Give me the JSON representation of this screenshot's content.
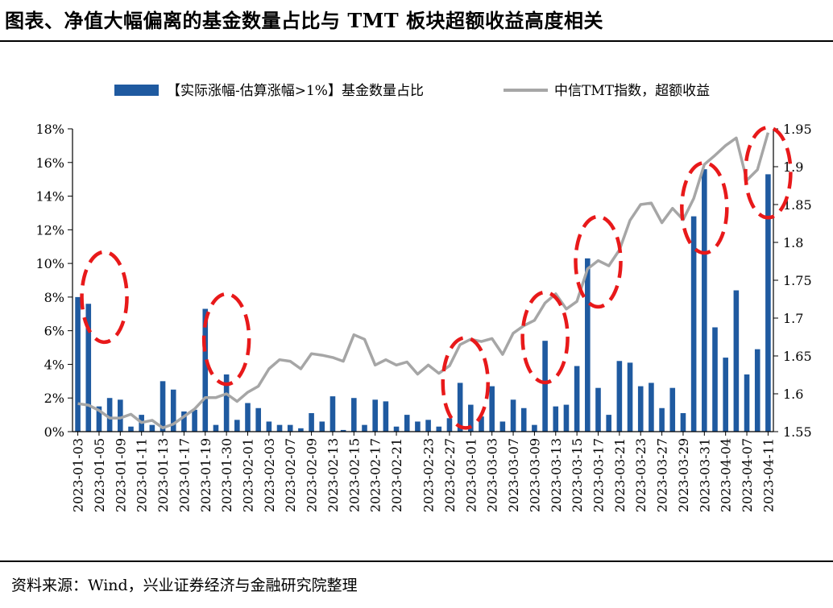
{
  "header": {
    "title": "图表、净值大幅偏离的基金数量占比与 TMT 板块超额收益高度相关"
  },
  "footer": {
    "source": "资料来源：Wind，兴业证券经济与金融研究院整理"
  },
  "colors": {
    "bar": "#1f5aa0",
    "line": "#a6a6a6",
    "highlight": "#e8191a"
  },
  "chart_data": {
    "type": "bar+line",
    "x_tick_labels": [
      "2023-01-03",
      "2023-01-05",
      "2023-01-09",
      "2023-01-11",
      "2023-01-13",
      "2023-01-17",
      "2023-01-19",
      "2023-01-30",
      "2023-02-01",
      "2023-02-03",
      "2023-02-07",
      "2023-02-09",
      "2023-02-13",
      "2023-02-15",
      "2023-02-17",
      "2023-02-21",
      "2023-02-23",
      "2023-02-27",
      "2023-03-01",
      "2023-03-03",
      "2023-03-07",
      "2023-03-09",
      "2023-03-13",
      "2023-03-15",
      "2023-03-17",
      "2023-03-21",
      "2023-03-23",
      "2023-03-27",
      "2023-03-29",
      "2023-03-31",
      "2023-04-04",
      "2023-04-07",
      "2023-04-11"
    ],
    "y_left": {
      "ticks": [
        "0%",
        "2%",
        "4%",
        "6%",
        "8%",
        "10%",
        "12%",
        "14%",
        "16%",
        "18%"
      ],
      "range": [
        0,
        18
      ]
    },
    "y_right": {
      "ticks": [
        "1.55",
        "1.6",
        "1.65",
        "1.7",
        "1.75",
        "1.8",
        "1.85",
        "1.9",
        "1.95"
      ],
      "range": [
        1.55,
        1.95
      ]
    },
    "series": [
      {
        "name": "【实际涨幅-估算涨幅>1%】基金数量占比",
        "type": "bar",
        "axis": "left",
        "values": [
          8.0,
          7.6,
          1.5,
          2.0,
          1.9,
          0.3,
          1.0,
          0.4,
          3.0,
          2.5,
          1.2,
          1.3,
          7.3,
          0.4,
          3.4,
          0.7,
          1.7,
          1.4,
          0.6,
          0.4,
          0.4,
          0.2,
          1.1,
          0.6,
          2.1,
          0.1,
          2.0,
          0.4,
          1.9,
          1.8,
          0.3,
          1.0,
          0.6,
          0.7,
          0.3,
          0.8,
          2.9,
          1.6,
          0.9,
          2.7,
          0.6,
          1.9,
          1.4,
          0.4,
          5.4,
          1.5,
          1.6,
          3.9,
          10.3,
          2.6,
          1.0,
          4.2,
          4.1,
          2.7,
          2.9,
          1.4,
          2.6,
          1.1,
          12.8,
          15.6,
          6.2,
          4.4,
          8.4,
          3.4,
          4.9,
          15.3
        ]
      },
      {
        "name": "中信TMT指数，超额收益",
        "type": "line",
        "axis": "right",
        "values": [
          1.587,
          1.585,
          1.578,
          1.568,
          1.568,
          1.573,
          1.562,
          1.565,
          1.555,
          1.56,
          1.57,
          1.58,
          1.595,
          1.595,
          1.6,
          1.59,
          1.602,
          1.61,
          1.633,
          1.645,
          1.643,
          1.633,
          1.653,
          1.651,
          1.648,
          1.643,
          1.678,
          1.672,
          1.638,
          1.645,
          1.638,
          1.642,
          1.626,
          1.638,
          1.627,
          1.637,
          1.665,
          1.672,
          1.669,
          1.673,
          1.652,
          1.68,
          1.69,
          1.697,
          1.72,
          1.732,
          1.712,
          1.722,
          1.765,
          1.776,
          1.769,
          1.79,
          1.829,
          1.85,
          1.852,
          1.826,
          1.845,
          1.83,
          1.858,
          1.903,
          1.915,
          1.928,
          1.938,
          1.882,
          1.896,
          1.945
        ]
      }
    ],
    "highlight_regions": [
      {
        "center": 2.5,
        "y_pct": 8.0
      },
      {
        "center": 14.0,
        "y_pct": 5.5
      },
      {
        "center": 36.5,
        "y_pct": 2.9
      },
      {
        "center": 44.0,
        "y_pct": 5.6
      },
      {
        "center": 49.0,
        "y_pct": 10.1
      },
      {
        "center": 59.0,
        "y_pct": 13.3
      },
      {
        "center": 65.0,
        "y_pct": 15.4
      }
    ],
    "legend_position": "top"
  }
}
